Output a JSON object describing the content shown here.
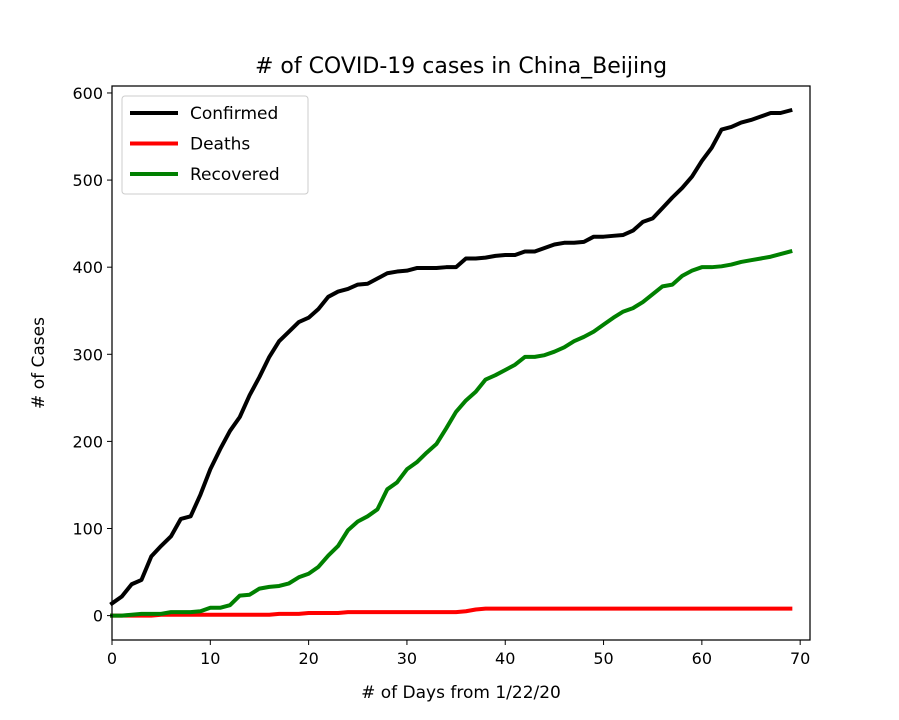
{
  "chart_data": {
    "type": "line",
    "title": "# of COVID-19 cases in China_Beijing",
    "xlabel": "# of Days from 1/22/20",
    "ylabel": "# of Cases",
    "xlim": [
      0,
      71
    ],
    "ylim": [
      -28,
      608
    ],
    "xticks": [
      0,
      10,
      20,
      30,
      40,
      50,
      60,
      70
    ],
    "yticks": [
      0,
      100,
      200,
      300,
      400,
      500,
      600
    ],
    "grid": false,
    "legend_position": "upper-left",
    "series": [
      {
        "name": "Confirmed",
        "color": "#000000",
        "x": [
          0,
          1,
          2,
          3,
          4,
          5,
          6,
          7,
          8,
          9,
          10,
          11,
          12,
          13,
          14,
          15,
          16,
          17,
          18,
          19,
          20,
          21,
          22,
          23,
          24,
          25,
          26,
          27,
          28,
          29,
          30,
          31,
          32,
          33,
          34,
          35,
          36,
          37,
          38,
          39,
          40,
          41,
          42,
          43,
          44,
          45,
          46,
          47,
          48,
          49,
          50,
          51,
          52,
          53,
          54,
          55,
          56,
          57,
          58,
          59,
          60,
          61,
          62,
          63,
          64,
          65,
          66,
          67,
          68,
          69
        ],
        "y": [
          14,
          22,
          36,
          41,
          68,
          80,
          91,
          111,
          114,
          139,
          168,
          191,
          212,
          228,
          253,
          274,
          297,
          315,
          326,
          337,
          342,
          352,
          366,
          372,
          375,
          380,
          381,
          387,
          393,
          395,
          396,
          399,
          399,
          399,
          400,
          400,
          410,
          410,
          411,
          413,
          414,
          414,
          418,
          418,
          422,
          426,
          428,
          428,
          429,
          435,
          435,
          436,
          437,
          442,
          452,
          456,
          468,
          480,
          491,
          504,
          522,
          537,
          558,
          561,
          566,
          569,
          573,
          577,
          577,
          580
        ]
      },
      {
        "name": "Deaths",
        "color": "#ff0000",
        "x": [
          0,
          1,
          2,
          3,
          4,
          5,
          6,
          7,
          8,
          9,
          10,
          11,
          12,
          13,
          14,
          15,
          16,
          17,
          18,
          19,
          20,
          21,
          22,
          23,
          24,
          25,
          26,
          27,
          28,
          29,
          30,
          31,
          32,
          33,
          34,
          35,
          36,
          37,
          38,
          39,
          40,
          41,
          42,
          43,
          44,
          45,
          46,
          47,
          48,
          49,
          50,
          51,
          52,
          53,
          54,
          55,
          56,
          57,
          58,
          59,
          60,
          61,
          62,
          63,
          64,
          65,
          66,
          67,
          68,
          69
        ],
        "y": [
          0,
          0,
          0,
          0,
          0,
          1,
          1,
          1,
          1,
          1,
          1,
          1,
          1,
          1,
          1,
          1,
          1,
          2,
          2,
          2,
          3,
          3,
          3,
          3,
          4,
          4,
          4,
          4,
          4,
          4,
          4,
          4,
          4,
          4,
          4,
          4,
          5,
          7,
          8,
          8,
          8,
          8,
          8,
          8,
          8,
          8,
          8,
          8,
          8,
          8,
          8,
          8,
          8,
          8,
          8,
          8,
          8,
          8,
          8,
          8,
          8,
          8,
          8,
          8,
          8,
          8,
          8,
          8,
          8,
          8
        ]
      },
      {
        "name": "Recovered",
        "color": "#008000",
        "x": [
          0,
          1,
          2,
          3,
          4,
          5,
          6,
          7,
          8,
          9,
          10,
          11,
          12,
          13,
          14,
          15,
          16,
          17,
          18,
          19,
          20,
          21,
          22,
          23,
          24,
          25,
          26,
          27,
          28,
          29,
          30,
          31,
          32,
          33,
          34,
          35,
          36,
          37,
          38,
          39,
          40,
          41,
          42,
          43,
          44,
          45,
          46,
          47,
          48,
          49,
          50,
          51,
          52,
          53,
          54,
          55,
          56,
          57,
          58,
          59,
          60,
          61,
          62,
          63,
          64,
          65,
          66,
          67,
          68,
          69
        ],
        "y": [
          0,
          0,
          1,
          2,
          2,
          2,
          4,
          4,
          4,
          5,
          9,
          9,
          12,
          23,
          24,
          31,
          33,
          34,
          37,
          44,
          48,
          56,
          69,
          80,
          98,
          108,
          114,
          122,
          145,
          153,
          168,
          176,
          187,
          197,
          215,
          234,
          247,
          257,
          271,
          276,
          282,
          288,
          297,
          297,
          299,
          303,
          308,
          315,
          320,
          326,
          334,
          342,
          349,
          353,
          360,
          369,
          378,
          380,
          390,
          396,
          400,
          400,
          401,
          403,
          406,
          408,
          410,
          412,
          415,
          418
        ]
      }
    ]
  }
}
